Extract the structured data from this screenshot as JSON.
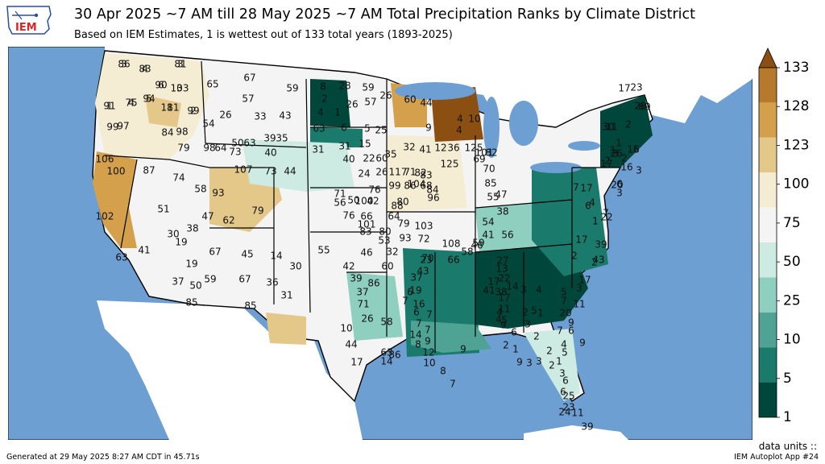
{
  "logo": {
    "text": "IEM"
  },
  "header": {
    "title": "30 Apr 2025 ~7 AM till 28 May 2025 ~7 AM Total Precipitation Ranks by Climate District",
    "subtitle": "Based on IEM Estimates, 1 is wettest out of 133 total years (1893-2025)"
  },
  "colorbar": {
    "ticks": [
      "133",
      "128",
      "123",
      "100",
      "75",
      "50",
      "25",
      "10",
      "5",
      "1"
    ],
    "colors": [
      "#8b4f12",
      "#b77a2c",
      "#d4a04c",
      "#e3c88a",
      "#f5ecd4",
      "#f4f4f4",
      "#cdeae3",
      "#8fcfbf",
      "#4fa394",
      "#1a7a6b",
      "#01463a"
    ]
  },
  "map_colors": {
    "ocean": "#6e9fd3",
    "lakes": "#6e9fd3",
    "land_outside": "#ffffff"
  },
  "ranks": [
    {
      "v": "86",
      "c": "light"
    },
    {
      "v": "83",
      "c": "wheat"
    },
    {
      "v": "81",
      "c": "light"
    },
    {
      "v": "90",
      "c": "light"
    },
    {
      "v": "103",
      "c": "wheat"
    },
    {
      "v": "94",
      "c": "light"
    },
    {
      "v": "91",
      "c": "light"
    },
    {
      "v": "75",
      "c": "light"
    },
    {
      "v": "111",
      "c": "tan"
    },
    {
      "v": "99",
      "c": "light"
    },
    {
      "v": "99",
      "c": "light"
    },
    {
      "v": "97",
      "c": "light"
    },
    {
      "v": "84",
      "c": "light"
    },
    {
      "v": "98",
      "c": "light"
    },
    {
      "v": "79",
      "c": "light"
    },
    {
      "v": "98",
      "c": "light"
    },
    {
      "v": "65",
      "c": "white"
    },
    {
      "v": "54",
      "c": "white"
    },
    {
      "v": "64",
      "c": "white"
    },
    {
      "v": "67",
      "c": "white"
    },
    {
      "v": "57",
      "c": "white"
    },
    {
      "v": "59",
      "c": "white"
    },
    {
      "v": "26",
      "c": "mint"
    },
    {
      "v": "33",
      "c": "mint"
    },
    {
      "v": "43",
      "c": "mint"
    },
    {
      "v": "50",
      "c": "white"
    },
    {
      "v": "73",
      "c": "white"
    },
    {
      "v": "63",
      "c": "white"
    },
    {
      "v": "39",
      "c": "mint"
    },
    {
      "v": "35",
      "c": "mint"
    },
    {
      "v": "40",
      "c": "mint"
    },
    {
      "v": "107",
      "c": "tan"
    },
    {
      "v": "73",
      "c": "white"
    },
    {
      "v": "44",
      "c": "mint"
    },
    {
      "v": "106",
      "c": "tan"
    },
    {
      "v": "100",
      "c": "tan"
    },
    {
      "v": "87",
      "c": "light"
    },
    {
      "v": "74",
      "c": "white"
    },
    {
      "v": "58",
      "c": "white"
    },
    {
      "v": "93",
      "c": "light"
    },
    {
      "v": "102",
      "c": "tan"
    },
    {
      "v": "51",
      "c": "white"
    },
    {
      "v": "47",
      "c": "white"
    },
    {
      "v": "62",
      "c": "white"
    },
    {
      "v": "79",
      "c": "light"
    },
    {
      "v": "30",
      "c": "mint"
    },
    {
      "v": "38",
      "c": "mint"
    },
    {
      "v": "41",
      "c": "mint"
    },
    {
      "v": "63",
      "c": "white"
    },
    {
      "v": "19",
      "c": "teal"
    },
    {
      "v": "19",
      "c": "teal"
    },
    {
      "v": "67",
      "c": "white"
    },
    {
      "v": "37",
      "c": "mint"
    },
    {
      "v": "50",
      "c": "white"
    },
    {
      "v": "59",
      "c": "white"
    },
    {
      "v": "85",
      "c": "light"
    },
    {
      "v": "45",
      "c": "mint"
    },
    {
      "v": "14",
      "c": "teal"
    },
    {
      "v": "30",
      "c": "mint"
    },
    {
      "v": "67",
      "c": "white"
    },
    {
      "v": "36",
      "c": "mint"
    },
    {
      "v": "31",
      "c": "mint"
    },
    {
      "v": "85",
      "c": "light"
    },
    {
      "v": "8",
      "c": "deep"
    },
    {
      "v": "28",
      "c": "mint"
    },
    {
      "v": "59",
      "c": "white"
    },
    {
      "v": "2",
      "c": "deep"
    },
    {
      "v": "26",
      "c": "mint"
    },
    {
      "v": "57",
      "c": "white"
    },
    {
      "v": "4",
      "c": "deep"
    },
    {
      "v": "1",
      "c": "deep"
    },
    {
      "v": "26",
      "c": "mint"
    },
    {
      "v": "63",
      "c": "white"
    },
    {
      "v": "6",
      "c": "dteal"
    },
    {
      "v": "5",
      "c": "dteal"
    },
    {
      "v": "25",
      "c": "mint"
    },
    {
      "v": "31",
      "c": "mint"
    },
    {
      "v": "31",
      "c": "mint"
    },
    {
      "v": "15",
      "c": "teal"
    },
    {
      "v": "40",
      "c": "mint"
    },
    {
      "v": "22",
      "c": "teal"
    },
    {
      "v": "60",
      "c": "white"
    },
    {
      "v": "26",
      "c": "teal"
    },
    {
      "v": "24",
      "c": "teal"
    },
    {
      "v": "76",
      "c": "white"
    },
    {
      "v": "42",
      "c": "mint"
    },
    {
      "v": "50",
      "c": "white"
    },
    {
      "v": "71",
      "c": "white"
    },
    {
      "v": "56",
      "c": "white"
    },
    {
      "v": "100",
      "c": "light"
    },
    {
      "v": "76",
      "c": "light"
    },
    {
      "v": "66",
      "c": "white"
    },
    {
      "v": "101",
      "c": "light"
    },
    {
      "v": "83",
      "c": "light"
    },
    {
      "v": "80",
      "c": "light"
    },
    {
      "v": "53",
      "c": "white"
    },
    {
      "v": "55",
      "c": "white"
    },
    {
      "v": "46",
      "c": "white"
    },
    {
      "v": "32",
      "c": "mint"
    },
    {
      "v": "42",
      "c": "mint"
    },
    {
      "v": "60",
      "c": "white"
    },
    {
      "v": "39",
      "c": "mint"
    },
    {
      "v": "86",
      "c": "light"
    },
    {
      "v": "37",
      "c": "mint"
    },
    {
      "v": "71",
      "c": "white"
    },
    {
      "v": "26",
      "c": "mint"
    },
    {
      "v": "58",
      "c": "white"
    },
    {
      "v": "10",
      "c": "teal"
    },
    {
      "v": "44",
      "c": "white"
    },
    {
      "v": "63",
      "c": "white"
    },
    {
      "v": "17",
      "c": "teal"
    },
    {
      "v": "14",
      "c": "teal"
    },
    {
      "v": "86",
      "c": "light"
    },
    {
      "v": "60",
      "c": "white"
    },
    {
      "v": "44",
      "c": "white"
    },
    {
      "v": "32",
      "c": "mint"
    },
    {
      "v": "41",
      "c": "mint"
    },
    {
      "v": "35",
      "c": "mint"
    },
    {
      "v": "117",
      "c": "tan"
    },
    {
      "v": "71",
      "c": "white"
    },
    {
      "v": "82",
      "c": "light"
    },
    {
      "v": "83",
      "c": "light"
    },
    {
      "v": "104",
      "c": "light"
    },
    {
      "v": "99",
      "c": "light"
    },
    {
      "v": "86",
      "c": "light"
    },
    {
      "v": "68",
      "c": "white"
    },
    {
      "v": "84",
      "c": "light"
    },
    {
      "v": "96",
      "c": "light"
    },
    {
      "v": "80",
      "c": "light"
    },
    {
      "v": "88",
      "c": "light"
    },
    {
      "v": "64",
      "c": "white"
    },
    {
      "v": "79",
      "c": "light"
    },
    {
      "v": "103",
      "c": "tan"
    },
    {
      "v": "93",
      "c": "light"
    },
    {
      "v": "72",
      "c": "white"
    },
    {
      "v": "70",
      "c": "white"
    },
    {
      "v": "23",
      "c": "teal"
    },
    {
      "v": "43",
      "c": "mint"
    },
    {
      "v": "37",
      "c": "mint"
    },
    {
      "v": "19",
      "c": "teal"
    },
    {
      "v": "6",
      "c": "dteal"
    },
    {
      "v": "7",
      "c": "dteal"
    },
    {
      "v": "16",
      "c": "teal"
    },
    {
      "v": "6",
      "c": "dteal"
    },
    {
      "v": "7",
      "c": "dteal"
    },
    {
      "v": "7",
      "c": "dteal"
    },
    {
      "v": "14",
      "c": "teal"
    },
    {
      "v": "7",
      "c": "dteal"
    },
    {
      "v": "8",
      "c": "dteal"
    },
    {
      "v": "9",
      "c": "dteal"
    },
    {
      "v": "12",
      "c": "teal"
    },
    {
      "v": "10",
      "c": "teal"
    },
    {
      "v": "8",
      "c": "dteal"
    },
    {
      "v": "7",
      "c": "dteal"
    },
    {
      "v": "9",
      "c": "dteal"
    },
    {
      "v": "4",
      "c": "dteal"
    },
    {
      "v": "4",
      "c": "dteal"
    },
    {
      "v": "10",
      "c": "teal"
    },
    {
      "v": "9",
      "c": "dteal"
    },
    {
      "v": "12",
      "c": "teal"
    },
    {
      "v": "36",
      "c": "mint"
    },
    {
      "v": "125",
      "c": "brown"
    },
    {
      "v": "125",
      "c": "brown"
    },
    {
      "v": "101",
      "c": "light"
    },
    {
      "v": "69",
      "c": "white"
    },
    {
      "v": "82",
      "c": "light"
    },
    {
      "v": "70",
      "c": "white"
    },
    {
      "v": "85",
      "c": "light"
    },
    {
      "v": "55",
      "c": "white"
    },
    {
      "v": "47",
      "c": "white"
    },
    {
      "v": "38",
      "c": "mint"
    },
    {
      "v": "54",
      "c": "white"
    },
    {
      "v": "41",
      "c": "mint"
    },
    {
      "v": "59",
      "c": "white"
    },
    {
      "v": "108",
      "c": "light"
    },
    {
      "v": "66",
      "c": "white"
    },
    {
      "v": "58",
      "c": "white"
    },
    {
      "v": "46",
      "c": "white"
    },
    {
      "v": "27",
      "c": "mint"
    },
    {
      "v": "56",
      "c": "white"
    },
    {
      "v": "13",
      "c": "teal"
    },
    {
      "v": "22",
      "c": "teal"
    },
    {
      "v": "17",
      "c": "teal"
    },
    {
      "v": "41",
      "c": "mint"
    },
    {
      "v": "38",
      "c": "mint"
    },
    {
      "v": "14",
      "c": "teal"
    },
    {
      "v": "17",
      "c": "teal"
    },
    {
      "v": "11",
      "c": "teal"
    },
    {
      "v": "4",
      "c": "dteal"
    },
    {
      "v": "4",
      "c": "dteal"
    },
    {
      "v": "5",
      "c": "dteal"
    },
    {
      "v": "9",
      "c": "dteal"
    },
    {
      "v": "6",
      "c": "dteal"
    },
    {
      "v": "2",
      "c": "deep"
    },
    {
      "v": "1",
      "c": "deep"
    },
    {
      "v": "2",
      "c": "deep"
    },
    {
      "v": "3",
      "c": "deep"
    },
    {
      "v": "4",
      "c": "dteal"
    },
    {
      "v": "5",
      "c": "dteal"
    },
    {
      "v": "1",
      "c": "deep"
    },
    {
      "v": "3",
      "c": "deep"
    },
    {
      "v": "2",
      "c": "deep"
    },
    {
      "v": "2",
      "c": "deep"
    },
    {
      "v": "1",
      "c": "deep"
    },
    {
      "v": "9",
      "c": "dteal"
    },
    {
      "v": "3",
      "c": "deep"
    },
    {
      "v": "3",
      "c": "deep"
    },
    {
      "v": "2",
      "c": "deep"
    },
    {
      "v": "3",
      "c": "deep"
    },
    {
      "v": "6",
      "c": "dteal"
    },
    {
      "v": "6",
      "c": "dteal"
    },
    {
      "v": "25",
      "c": "mint"
    },
    {
      "v": "23",
      "c": "teal"
    },
    {
      "v": "24",
      "c": "teal"
    },
    {
      "v": "11",
      "c": "teal"
    },
    {
      "v": "39",
      "c": "mint"
    },
    {
      "v": "17",
      "c": "teal"
    },
    {
      "v": "23",
      "c": "teal"
    },
    {
      "v": "28",
      "c": "mint"
    },
    {
      "v": "69",
      "c": "white"
    },
    {
      "v": "30",
      "c": "mint"
    },
    {
      "v": "11",
      "c": "teal"
    },
    {
      "v": "2",
      "c": "deep"
    },
    {
      "v": "1",
      "c": "deep"
    },
    {
      "v": "26",
      "c": "mint"
    },
    {
      "v": "2",
      "c": "deep"
    },
    {
      "v": "3",
      "c": "deep"
    },
    {
      "v": "15",
      "c": "teal"
    },
    {
      "v": "6",
      "c": "dteal"
    },
    {
      "v": "3",
      "c": "deep"
    },
    {
      "v": "1",
      "c": "deep"
    },
    {
      "v": "2",
      "c": "deep"
    },
    {
      "v": "17",
      "c": "teal"
    },
    {
      "v": "16",
      "c": "teal"
    },
    {
      "v": "20",
      "c": "teal"
    },
    {
      "v": "6",
      "c": "dteal"
    },
    {
      "v": "3",
      "c": "deep"
    },
    {
      "v": "7",
      "c": "dteal"
    },
    {
      "v": "17",
      "c": "teal"
    },
    {
      "v": "6",
      "c": "dteal"
    },
    {
      "v": "4",
      "c": "dteal"
    },
    {
      "v": "7",
      "c": "dteal"
    },
    {
      "v": "22",
      "c": "teal"
    },
    {
      "v": "17",
      "c": "teal"
    },
    {
      "v": "1",
      "c": "deep"
    },
    {
      "v": "2",
      "c": "deep"
    },
    {
      "v": "39",
      "c": "mint"
    },
    {
      "v": "43",
      "c": "mint"
    },
    {
      "v": "2",
      "c": "deep"
    },
    {
      "v": "17",
      "c": "teal"
    },
    {
      "v": "3",
      "c": "deep"
    },
    {
      "v": "11",
      "c": "teal"
    },
    {
      "v": "5",
      "c": "dteal"
    },
    {
      "v": "7",
      "c": "dteal"
    },
    {
      "v": "20",
      "c": "teal"
    },
    {
      "v": "9",
      "c": "dteal"
    },
    {
      "v": "6",
      "c": "dteal"
    },
    {
      "v": "7",
      "c": "dteal"
    },
    {
      "v": "4",
      "c": "dteal"
    },
    {
      "v": "5",
      "c": "dteal"
    },
    {
      "v": "9",
      "c": "dteal"
    },
    {
      "v": "3",
      "c": "deep"
    },
    {
      "v": "4",
      "c": "dteal"
    },
    {
      "v": "3",
      "c": "deep"
    },
    {
      "v": "6",
      "c": "dteal"
    },
    {
      "v": "3",
      "c": "deep"
    },
    {
      "v": "5",
      "c": "dteal"
    },
    {
      "v": "1",
      "c": "deep"
    },
    {
      "v": "4",
      "c": "dteal"
    },
    {
      "v": "8",
      "c": "dteal"
    },
    {
      "v": "2",
      "c": "deep"
    }
  ],
  "footer": {
    "generated": "Generated at 29 May 2025 8:27 AM CDT in 45.71s",
    "data_units": "data units ::",
    "app": "IEM Autoplot App #24"
  }
}
